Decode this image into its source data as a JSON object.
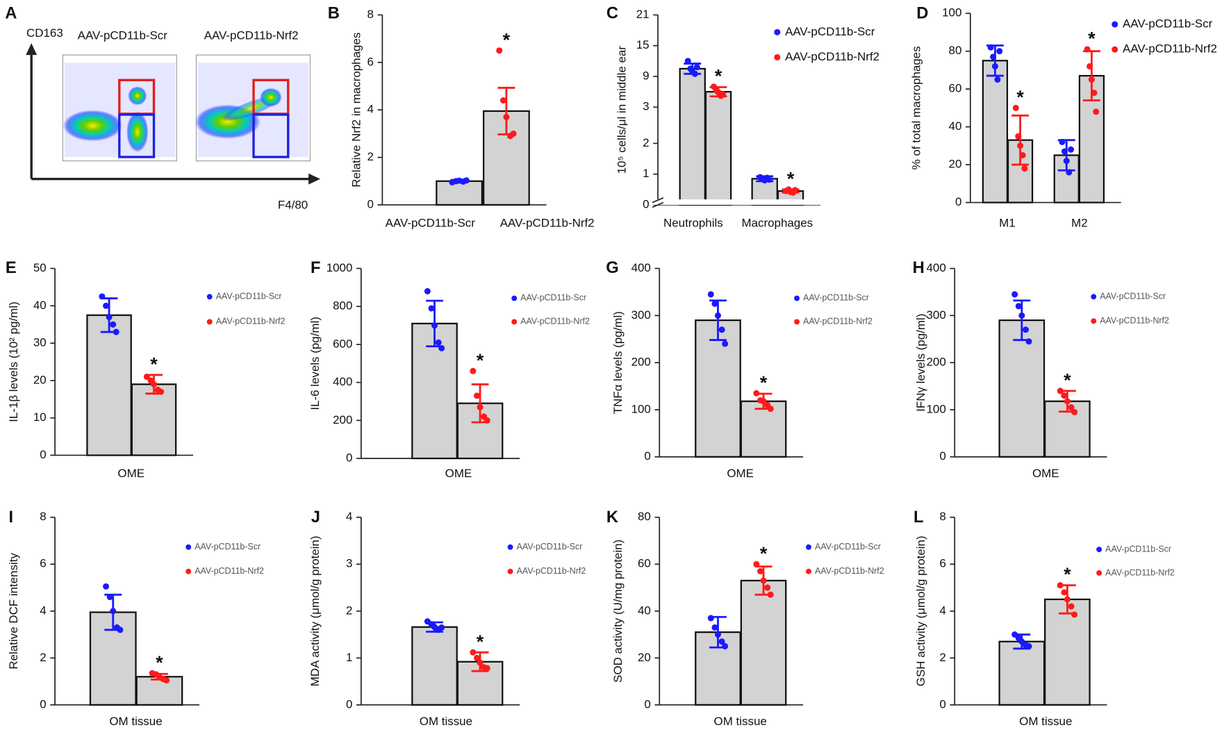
{
  "chart_data": [
    {
      "type": "flow",
      "panel": "A",
      "ylabel": "CD163",
      "xlabel": "F4/80",
      "titles": [
        "AAV-pCD11b-Scr",
        "AAV-pCD11b-Nrf2"
      ]
    },
    {
      "type": "bar",
      "panel": "B",
      "ylabel": "Relative Nrf2 in macrophages",
      "categories": [
        "AAV-pCD11b-Scr",
        "AAV-pCD11b-Nrf2"
      ],
      "values": [
        1.0,
        3.95
      ],
      "errors": [
        0.05,
        0.98
      ],
      "points": [
        [
          0.95,
          1.0,
          1.02,
          0.98,
          1.03
        ],
        [
          6.5,
          4.4,
          3.7,
          2.9,
          3.0
        ]
      ],
      "colors": [
        "#1a1aff",
        "#ff1a1a"
      ],
      "annotations": [
        null,
        "*"
      ],
      "ylim": [
        0,
        8
      ],
      "yticks": [
        0,
        2,
        4,
        6,
        8
      ]
    },
    {
      "type": "grouped_bar",
      "panel": "C",
      "ylabel": "10⁵ cells/μl in middle ear",
      "categories": [
        "Neutrophils",
        "Macrophages"
      ],
      "ylim": [
        0,
        21
      ],
      "yticks": [
        0,
        1,
        2,
        3,
        9,
        15,
        21
      ],
      "y_segments": [
        [
          0,
          3
        ],
        [
          3,
          21
        ]
      ],
      "series": [
        {
          "name": "AAV-pCD11b-Scr",
          "color": "#1a1aff",
          "values": [
            10.5,
            0.85
          ],
          "errors": [
            1.0,
            0.08
          ],
          "points": [
            [
              12,
              10.5,
              9.9,
              9.5,
              10.8
            ],
            [
              0.9,
              0.85,
              0.8,
              0.88,
              0.82
            ]
          ],
          "annotations": [
            null,
            null
          ]
        },
        {
          "name": "AAV-pCD11b-Nrf2",
          "color": "#ff1a1a",
          "values": [
            6.0,
            0.45
          ],
          "errors": [
            0.9,
            0.05
          ],
          "points": [
            [
              7,
              6.3,
              5.9,
              5.2,
              5.5
            ],
            [
              0.45,
              0.5,
              0.42,
              0.4,
              0.48
            ]
          ],
          "annotations": [
            "*",
            "*"
          ]
        }
      ]
    },
    {
      "type": "grouped_bar",
      "panel": "D",
      "ylabel": "% of total macrophages",
      "categories": [
        "M1",
        "M2"
      ],
      "ylim": [
        0,
        100
      ],
      "yticks": [
        0,
        20,
        40,
        60,
        80,
        100
      ],
      "series": [
        {
          "name": "AAV-pCD11b-Scr",
          "color": "#1a1aff",
          "values": [
            75,
            25
          ],
          "errors": [
            8,
            8
          ],
          "points": [
            [
              82,
              77,
              72,
              65,
              80
            ],
            [
              32,
              27,
              22,
              16,
              28
            ]
          ],
          "annotations": [
            null,
            null
          ]
        },
        {
          "name": "AAV-pCD11b-Nrf2",
          "color": "#ff1a1a",
          "values": [
            33,
            67
          ],
          "errors": [
            13,
            13
          ],
          "points": [
            [
              50,
              35,
              30,
              25,
              18
            ],
            [
              81,
              72,
              65,
              58,
              48
            ]
          ],
          "annotations": [
            "*",
            "*"
          ]
        }
      ]
    },
    {
      "type": "grouped_bar",
      "panel": "E",
      "ylabel": "IL-1β levels (10² pg/ml)",
      "categories": [
        "OME"
      ],
      "ylim": [
        0,
        50
      ],
      "yticks": [
        0,
        10,
        20,
        30,
        40,
        50
      ],
      "series": [
        {
          "name": "AAV-pCD11b-Scr",
          "color": "#1a1aff",
          "values": [
            37.5
          ],
          "errors": [
            4.5
          ],
          "points": [
            [
              42.5,
              40,
              37,
              35,
              33
            ]
          ],
          "annotations": [
            null
          ]
        },
        {
          "name": "AAV-pCD11b-Nrf2",
          "color": "#ff1a1a",
          "values": [
            19
          ],
          "errors": [
            2.5
          ],
          "points": [
            [
              21,
              20,
              19,
              17.5,
              17
            ]
          ],
          "annotations": [
            "*"
          ]
        }
      ]
    },
    {
      "type": "grouped_bar",
      "panel": "F",
      "ylabel": "IL-6 levels (pg/ml)",
      "categories": [
        "OME"
      ],
      "ylim": [
        0,
        1000
      ],
      "yticks": [
        0,
        200,
        400,
        600,
        800,
        1000
      ],
      "series": [
        {
          "name": "AAV-pCD11b-Scr",
          "color": "#1a1aff",
          "values": [
            710
          ],
          "errors": [
            120
          ],
          "points": [
            [
              880,
              790,
              700,
              610,
              580
            ]
          ],
          "annotations": [
            null
          ]
        },
        {
          "name": "AAV-pCD11b-Nrf2",
          "color": "#ff1a1a",
          "values": [
            290
          ],
          "errors": [
            100
          ],
          "points": [
            [
              460,
              330,
              270,
              220,
              200
            ]
          ],
          "annotations": [
            "*"
          ]
        }
      ]
    },
    {
      "type": "grouped_bar",
      "panel": "G",
      "ylabel": "TNFα levels (pg/ml)",
      "categories": [
        "OME"
      ],
      "ylim": [
        0,
        400
      ],
      "yticks": [
        0,
        100,
        200,
        300,
        400
      ],
      "series": [
        {
          "name": "AAV-pCD11b-Scr",
          "color": "#1a1aff",
          "values": [
            290
          ],
          "errors": [
            42
          ],
          "points": [
            [
              345,
              325,
              300,
              270,
              240
            ]
          ],
          "annotations": [
            null
          ]
        },
        {
          "name": "AAV-pCD11b-Nrf2",
          "color": "#ff1a1a",
          "values": [
            118
          ],
          "errors": [
            16
          ],
          "points": [
            [
              135,
              120,
              118,
              110,
              102
            ]
          ],
          "annotations": [
            "*"
          ]
        }
      ]
    },
    {
      "type": "grouped_bar",
      "panel": "H",
      "ylabel": "IFNγ levels (pg/ml)",
      "categories": [
        "OME"
      ],
      "ylim": [
        0,
        400
      ],
      "yticks": [
        0,
        100,
        200,
        300,
        400
      ],
      "series": [
        {
          "name": "AAV-pCD11b-Scr",
          "color": "#1a1aff",
          "values": [
            290
          ],
          "errors": [
            42
          ],
          "points": [
            [
              345,
              320,
              300,
              270,
              245
            ]
          ],
          "annotations": [
            null
          ]
        },
        {
          "name": "AAV-pCD11b-Nrf2",
          "color": "#ff1a1a",
          "values": [
            118
          ],
          "errors": [
            22
          ],
          "points": [
            [
              140,
              130,
              118,
              105,
              95
            ]
          ],
          "annotations": [
            "*"
          ]
        }
      ]
    },
    {
      "type": "grouped_bar",
      "panel": "I",
      "ylabel": "Relative DCF intensity",
      "categories": [
        "OM tissue"
      ],
      "ylim": [
        0,
        8
      ],
      "yticks": [
        0,
        2,
        4,
        6,
        8
      ],
      "series": [
        {
          "name": "AAV-pCD11b-Scr",
          "color": "#1a1aff",
          "values": [
            3.95
          ],
          "errors": [
            0.75
          ],
          "points": [
            [
              5.05,
              4.6,
              4.0,
              3.3,
              3.2
            ]
          ],
          "annotations": [
            null
          ]
        },
        {
          "name": "AAV-pCD11b-Nrf2",
          "color": "#ff1a1a",
          "values": [
            1.2
          ],
          "errors": [
            0.12
          ],
          "points": [
            [
              1.35,
              1.3,
              1.2,
              1.1,
              1.05
            ]
          ],
          "annotations": [
            "*"
          ]
        }
      ]
    },
    {
      "type": "grouped_bar",
      "panel": "J",
      "ylabel": "MDA activity (μmol/g protein)",
      "categories": [
        "OM tissue"
      ],
      "ylim": [
        0,
        4
      ],
      "yticks": [
        0,
        1,
        2,
        3,
        4
      ],
      "series": [
        {
          "name": "AAV-pCD11b-Scr",
          "color": "#1a1aff",
          "values": [
            1.66
          ],
          "errors": [
            0.1
          ],
          "points": [
            [
              1.78,
              1.72,
              1.66,
              1.6,
              1.65
            ]
          ],
          "annotations": [
            null
          ]
        },
        {
          "name": "AAV-pCD11b-Nrf2",
          "color": "#ff1a1a",
          "values": [
            0.92
          ],
          "errors": [
            0.2
          ],
          "points": [
            [
              1.12,
              1.0,
              0.9,
              0.8,
              0.78
            ]
          ],
          "annotations": [
            "*"
          ]
        }
      ]
    },
    {
      "type": "grouped_bar",
      "panel": "K",
      "ylabel": "SOD activity (U/mg protein)",
      "categories": [
        "OM tissue"
      ],
      "ylim": [
        0,
        80
      ],
      "yticks": [
        0,
        20,
        40,
        60,
        80
      ],
      "series": [
        {
          "name": "AAV-pCD11b-Scr",
          "color": "#1a1aff",
          "values": [
            31
          ],
          "errors": [
            6.5
          ],
          "points": [
            [
              37,
              33,
              30,
              27,
              25
            ]
          ],
          "annotations": [
            null
          ]
        },
        {
          "name": "AAV-pCD11b-Nrf2",
          "color": "#ff1a1a",
          "values": [
            53
          ],
          "errors": [
            6
          ],
          "points": [
            [
              60,
              57,
              53,
              50,
              47
            ]
          ],
          "annotations": [
            "*"
          ]
        }
      ]
    },
    {
      "type": "grouped_bar",
      "panel": "L",
      "ylabel": "GSH activity (μmol/g protein)",
      "categories": [
        "OM tissue"
      ],
      "ylim": [
        0,
        8
      ],
      "yticks": [
        0,
        2,
        4,
        6,
        8
      ],
      "series": [
        {
          "name": "AAV-pCD11b-Scr",
          "color": "#1a1aff",
          "values": [
            2.7
          ],
          "errors": [
            0.3
          ],
          "points": [
            [
              3.0,
              2.85,
              2.7,
              2.55,
              2.5
            ]
          ],
          "annotations": [
            null
          ]
        },
        {
          "name": "AAV-pCD11b-Nrf2",
          "color": "#ff1a1a",
          "values": [
            4.5
          ],
          "errors": [
            0.6
          ],
          "points": [
            [
              5.1,
              4.8,
              4.5,
              4.2,
              3.85
            ]
          ],
          "annotations": [
            "*"
          ]
        }
      ]
    }
  ]
}
